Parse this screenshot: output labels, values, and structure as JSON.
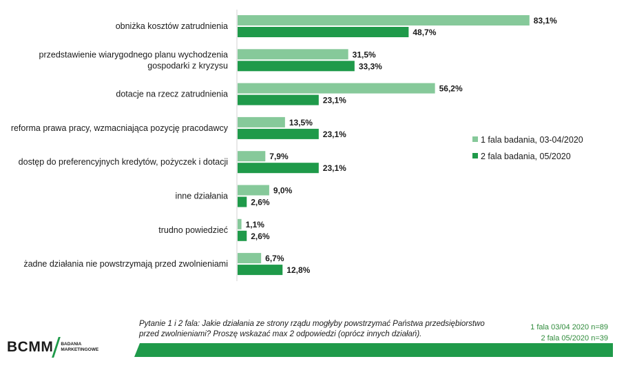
{
  "chart_data": {
    "type": "bar",
    "orientation": "horizontal",
    "categories": [
      [
        "obniżka kosztów zatrudnienia"
      ],
      [
        "przedstawienie wiarygodnego planu wychodzenia",
        "gospodarki z kryzysu"
      ],
      [
        "dotacje na rzecz zatrudnienia"
      ],
      [
        "reforma prawa pracy, wzmacniająca pozycję pracodawcy"
      ],
      [
        "dostęp do preferencyjnych kredytów, pożyczek i dotacji"
      ],
      [
        "inne działania"
      ],
      [
        "trudno powiedzieć"
      ],
      [
        "żadne działania nie powstrzymają przed zwolnieniami"
      ]
    ],
    "series": [
      {
        "name": "1 fala badania, 03-04/2020",
        "color": "#86c99a",
        "values": [
          83.1,
          31.5,
          56.2,
          13.5,
          7.9,
          9.0,
          1.1,
          6.7
        ],
        "labels": [
          "83,1%",
          "31,5%",
          "56,2%",
          "13,5%",
          "7,9%",
          "9,0%",
          "1,1%",
          "6,7%"
        ]
      },
      {
        "name": "2 fala badania, 05/2020",
        "color": "#1f9a4a",
        "values": [
          48.7,
          33.3,
          23.1,
          23.1,
          23.1,
          2.6,
          2.6,
          12.8
        ],
        "labels": [
          "48,7%",
          "33,3%",
          "23,1%",
          "23,1%",
          "23,1%",
          "2,6%",
          "2,6%",
          "12,8%"
        ]
      }
    ],
    "xlim": [
      0,
      100
    ],
    "legend_position": "right",
    "grid": false
  },
  "footer": {
    "logo_main": "BCMM",
    "logo_sub_line1": "BADANIA",
    "logo_sub_line2": "MARKETINGOWE",
    "question_line1": "Pytanie 1 i 2 fala: Jakie działania ze strony rządu mogłyby powstrzymać Państwa przedsiębiorstwo",
    "question_line2": "przed zwolnieniami? Proszę wskazać max 2 odpowiedzi (oprócz innych działań).",
    "sample_line1": "1 fala 03/04 2020 n=89",
    "sample_line2": "2 fala 05/2020 n=39"
  }
}
